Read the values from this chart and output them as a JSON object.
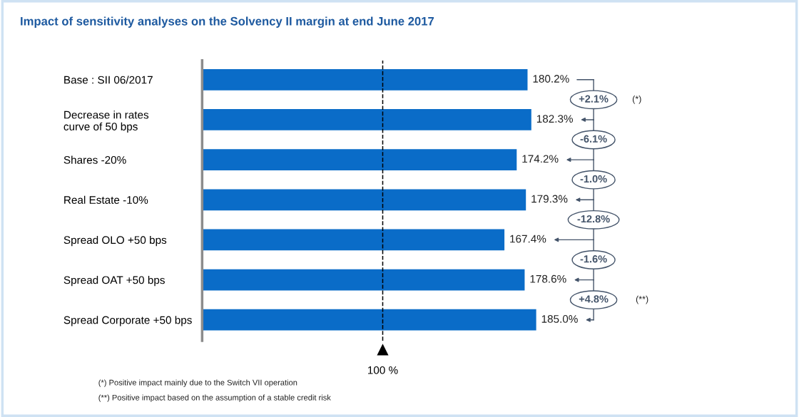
{
  "chart_data": {
    "type": "bar",
    "orientation": "horizontal",
    "title": "Impact of sensitivity analyses on the Solvency II margin at end June 2017",
    "categories": [
      "Base : SII 06/2017",
      "Decrease in rates\ncurve of 50 bps",
      "Shares -20%",
      "Real Estate -10%",
      "Spread OLO +50 bps",
      "Spread OAT +50 bps",
      "Spread Corporate +50 bps"
    ],
    "values": [
      180.2,
      182.3,
      174.2,
      179.3,
      167.4,
      178.6,
      185.0
    ],
    "value_labels": [
      "180.2%",
      "182.3%",
      "174.2%",
      "179.3%",
      "167.4%",
      "178.6%",
      "185.0%"
    ],
    "color": "#0a6cc8",
    "tick_labels": "y",
    "grid": false,
    "legend": false,
    "ref_lines": [
      {
        "axis": "x",
        "value": 100,
        "label": "100 %",
        "line_style": "dashed",
        "color": "#000000"
      }
    ],
    "annotations": [
      "+2.1%",
      "-6.1%",
      "-1.0%",
      "-12.8%",
      "-1.6%",
      "+4.8%",
      "(*)",
      "(**)",
      "(*) Positive impact mainly due to the Switch VII operation",
      "(**) Positive impact based on the assumption of a stable credit risk"
    ]
  }
}
